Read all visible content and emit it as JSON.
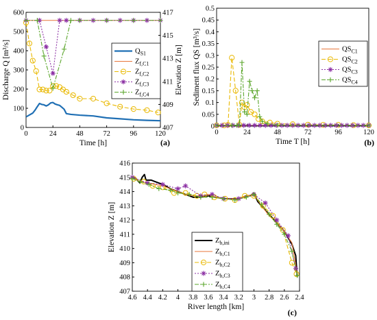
{
  "chart_data": [
    {
      "id": "a",
      "type": "line",
      "panel_label": "(a)",
      "xlabel": "Time [h]",
      "ylabel_left": "Discharge Q [m³/s]",
      "ylabel_right": "Elevation Z [m]",
      "xlim": [
        0,
        120
      ],
      "ylim_left": [
        0,
        600
      ],
      "ylim_right": [
        407,
        417
      ],
      "xticks": [
        "0",
        "24",
        "48",
        "72",
        "96",
        "120"
      ],
      "yticks_left": [
        "0",
        "100",
        "200",
        "300",
        "400",
        "500",
        "600"
      ],
      "yticks_right": [
        "407",
        "409",
        "411",
        "413",
        "415",
        "417"
      ],
      "legend_position": "right",
      "legend": [
        {
          "main": "Q",
          "sub": "S1",
          "key": "qs1"
        },
        {
          "main": "Z",
          "sub": "f,C1",
          "key": "zc1"
        },
        {
          "main": "Z",
          "sub": "f,C2",
          "key": "zc2"
        },
        {
          "main": "Z",
          "sub": "f,C3",
          "key": "zc3"
        },
        {
          "main": "Z",
          "sub": "f,C4",
          "key": "zc4"
        }
      ],
      "series": [
        {
          "key": "qs1",
          "axis": "left",
          "color": "#1f6fb4",
          "x": [
            0,
            3,
            6,
            8,
            10,
            12,
            14,
            16,
            18,
            20,
            22,
            24,
            26,
            28,
            30,
            32,
            34,
            36,
            40,
            48,
            60,
            72,
            84,
            96,
            108,
            120
          ],
          "y": [
            55,
            65,
            75,
            90,
            108,
            125,
            120,
            118,
            112,
            118,
            128,
            130,
            122,
            118,
            115,
            105,
            95,
            72,
            68,
            64,
            60,
            50,
            45,
            40,
            37,
            35
          ]
        },
        {
          "key": "zc1",
          "axis": "right",
          "color": "#e8763a",
          "x": [
            0,
            120
          ],
          "y": [
            416.3,
            416.3
          ]
        },
        {
          "key": "zc2",
          "axis": "right",
          "color": "#e9b800",
          "x": [
            0,
            3,
            6,
            9,
            12,
            15,
            18,
            21,
            24,
            27,
            30,
            33,
            36,
            42,
            48,
            60,
            72,
            84,
            96,
            108,
            118
          ],
          "y": [
            416.1,
            414.3,
            412.8,
            411.9,
            410.3,
            410.3,
            410.2,
            410.2,
            410.6,
            410.6,
            410.5,
            410.3,
            410.1,
            409.8,
            409.5,
            409.5,
            409.1,
            408.8,
            408.6,
            408.5,
            408.3
          ]
        },
        {
          "key": "zc3",
          "axis": "right",
          "color": "#8b2fa3",
          "x": [
            0,
            12,
            18,
            24,
            30,
            36,
            48,
            60,
            72,
            84,
            96,
            108,
            120
          ],
          "y": [
            416.3,
            416.3,
            414.0,
            411.7,
            416.3,
            416.3,
            416.3,
            416.3,
            416.3,
            416.3,
            416.3,
            416.3,
            416.3
          ]
        },
        {
          "key": "zc4",
          "axis": "right",
          "color": "#5aa52a",
          "x": [
            0,
            10,
            16,
            24,
            34,
            40,
            48,
            72,
            96,
            120
          ],
          "y": [
            416.3,
            416.3,
            413.2,
            410.4,
            413.8,
            416.3,
            416.3,
            416.3,
            416.3,
            416.3
          ]
        }
      ]
    },
    {
      "id": "b",
      "type": "line",
      "panel_label": "(b)",
      "xlabel": "Time T [h]",
      "ylabel": "Sediment flux QS [m³/s]",
      "xlim": [
        0,
        120
      ],
      "ylim": [
        0,
        0.5
      ],
      "xticks": [
        "0",
        "24",
        "48",
        "72",
        "96",
        "120"
      ],
      "yticks": [
        "0",
        "0.05",
        "0.1",
        "0.15",
        "0.2",
        "0.25",
        "0.3",
        "0.35",
        "0.4",
        "0.45",
        "0.5"
      ],
      "legend_position": "top-right",
      "legend": [
        {
          "main": "QS",
          "sub": "C1",
          "key": "qc1"
        },
        {
          "main": "QS",
          "sub": "C2",
          "key": "qc2"
        },
        {
          "main": "QS",
          "sub": "C3",
          "key": "qc3"
        },
        {
          "main": "QS",
          "sub": "C4",
          "key": "qc4"
        }
      ],
      "series": [
        {
          "key": "qc1",
          "color": "#e8763a",
          "x": [
            0,
            120
          ],
          "y": [
            0.003,
            0.003
          ]
        },
        {
          "key": "qc2",
          "color": "#e9b800",
          "x": [
            0,
            6,
            9,
            12,
            15,
            18,
            20,
            22,
            24,
            27,
            30,
            33,
            36,
            42,
            48,
            60,
            72,
            84,
            96,
            108,
            120
          ],
          "y": [
            0.003,
            0.003,
            0.005,
            0.29,
            0.15,
            0.005,
            0.1,
            0.08,
            0.09,
            0.06,
            0.05,
            0.03,
            0.02,
            0.015,
            0.01,
            0.008,
            0.006,
            0.005,
            0.005,
            0.004,
            0.003
          ]
        },
        {
          "key": "qc3",
          "color": "#8b2fa3",
          "x": [
            0,
            120
          ],
          "y": [
            0.003,
            0.003
          ]
        },
        {
          "key": "qc4",
          "color": "#5aa52a",
          "x": [
            0,
            12,
            16,
            18,
            20,
            22,
            24,
            26,
            28,
            30,
            32,
            34,
            36,
            40,
            48,
            120
          ],
          "y": [
            0.003,
            0.003,
            0.003,
            0.005,
            0.27,
            0.06,
            0.05,
            0.19,
            0.15,
            0.12,
            0.15,
            0.04,
            0.02,
            0.01,
            0.004,
            0.003
          ]
        }
      ]
    },
    {
      "id": "c",
      "type": "line",
      "panel_label": "(c)",
      "xlabel": "River length [km]",
      "ylabel": "Elevation Z [m]",
      "xlim": [
        4.6,
        2.4
      ],
      "ylim": [
        407,
        416
      ],
      "xticks": [
        "4.6",
        "4.4",
        "4.2",
        "4",
        "3.8",
        "3.6",
        "3.4",
        "3.2",
        "3",
        "2.8",
        "2.6",
        "2.4"
      ],
      "yticks": [
        "407",
        "408",
        "409",
        "410",
        "411",
        "412",
        "413",
        "414",
        "415",
        "416"
      ],
      "legend_position": "bottom-center",
      "legend": [
        {
          "main": "Z",
          "sub": "b,ini",
          "key": "zini"
        },
        {
          "main": "Z",
          "sub": "b,C1",
          "key": "zbc1"
        },
        {
          "main": "Z",
          "sub": "b,C2",
          "key": "zbc2"
        },
        {
          "main": "Z",
          "sub": "b,C3",
          "key": "zbc3"
        },
        {
          "main": "Z",
          "sub": "b,C4",
          "key": "zbc4"
        }
      ],
      "series": [
        {
          "key": "zini",
          "color": "#000000",
          "x": [
            4.6,
            4.55,
            4.5,
            4.47,
            4.44,
            4.42,
            4.4,
            4.35,
            4.3,
            4.2,
            4.1,
            4.0,
            3.9,
            3.8,
            3.7,
            3.6,
            3.5,
            3.4,
            3.3,
            3.2,
            3.1,
            3.05,
            3.0,
            2.95,
            2.9,
            2.8,
            2.7,
            2.6,
            2.5,
            2.45,
            2.43
          ],
          "y": [
            415.0,
            414.9,
            414.6,
            415.0,
            415.2,
            414.8,
            414.8,
            414.8,
            414.7,
            414.5,
            414.2,
            414.0,
            413.8,
            413.6,
            413.6,
            413.7,
            413.6,
            413.5,
            413.5,
            413.5,
            413.7,
            413.7,
            413.9,
            413.3,
            413.0,
            412.4,
            411.8,
            411.2,
            410.3,
            409.5,
            408.0
          ]
        },
        {
          "key": "zbc1",
          "color": "#e8763a",
          "x": [
            4.6,
            4.5,
            4.4,
            4.3,
            4.2,
            4.1,
            4.0,
            3.9,
            3.8,
            3.7,
            3.6,
            3.5,
            3.4,
            3.3,
            3.2,
            3.1,
            3.0,
            2.9,
            2.8,
            2.7,
            2.6,
            2.5,
            2.43
          ],
          "y": [
            415.0,
            414.7,
            414.6,
            414.5,
            414.4,
            414.2,
            414.0,
            413.8,
            413.7,
            413.7,
            413.8,
            413.6,
            413.5,
            413.5,
            413.5,
            413.7,
            413.8,
            413.0,
            412.3,
            411.8,
            411.2,
            410.4,
            408.2
          ]
        },
        {
          "key": "zbc2",
          "color": "#e9b800",
          "x": [
            4.58,
            4.45,
            4.33,
            4.2,
            4.05,
            3.9,
            3.75,
            3.65,
            3.52,
            3.38,
            3.25,
            3.12,
            3.0,
            2.88,
            2.75,
            2.62,
            2.5,
            2.44
          ],
          "y": [
            414.9,
            414.7,
            414.4,
            414.3,
            413.9,
            413.9,
            413.7,
            413.8,
            413.6,
            413.5,
            413.4,
            413.7,
            413.7,
            413.0,
            412.3,
            411.3,
            409.0,
            408.2
          ]
        },
        {
          "key": "zbc3",
          "color": "#8b2fa3",
          "x": [
            4.6,
            4.4,
            4.2,
            4.0,
            3.9,
            3.7,
            3.55,
            3.4,
            3.2,
            3.0,
            2.85,
            2.7,
            2.55,
            2.45
          ],
          "y": [
            415.0,
            414.6,
            414.5,
            414.2,
            414.4,
            413.7,
            413.8,
            413.5,
            413.5,
            413.8,
            413.2,
            412.0,
            410.9,
            408.6
          ]
        },
        {
          "key": "zbc4",
          "color": "#5aa52a",
          "x": [
            4.6,
            4.5,
            4.38,
            4.25,
            4.1,
            4.0,
            3.85,
            3.7,
            3.55,
            3.4,
            3.25,
            3.1,
            3.0,
            2.9,
            2.8,
            2.7,
            2.6,
            2.5,
            2.43
          ],
          "y": [
            414.9,
            414.7,
            414.5,
            414.2,
            414.1,
            413.9,
            413.8,
            413.6,
            413.6,
            413.5,
            413.4,
            413.6,
            413.8,
            413.1,
            412.4,
            411.7,
            411.0,
            409.8,
            408.1
          ]
        }
      ]
    }
  ]
}
